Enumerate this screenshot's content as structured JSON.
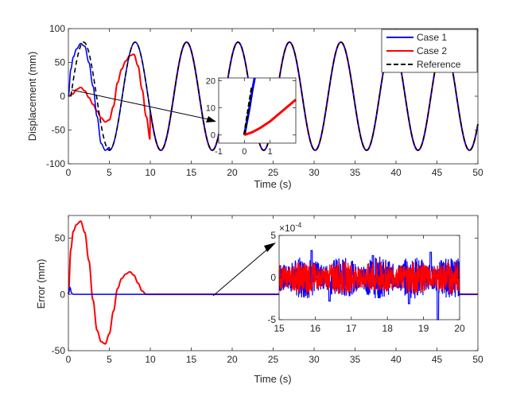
{
  "chart_data": [
    {
      "type": "line",
      "xlabel": "Time (s)",
      "ylabel": "Displacement (mm)",
      "xlim": [
        0,
        50
      ],
      "ylim": [
        -100,
        100
      ],
      "xticks": [
        0,
        5,
        10,
        15,
        20,
        25,
        30,
        35,
        40,
        45,
        50
      ],
      "yticks": [
        -100,
        -50,
        0,
        50,
        100
      ],
      "grid": false,
      "legend_position": "top-right",
      "reference_signal": {
        "amplitude": 80,
        "period": 6.28,
        "offset": 0,
        "x_start": 0.3,
        "x_end": 50
      },
      "series": [
        {
          "name": "Case 1",
          "color": "#0000ff",
          "dash": "solid",
          "x": [
            0,
            0.3,
            0.6,
            1.0,
            1.5,
            2.0,
            2.5,
            3.0,
            3.5,
            4.0,
            4.5,
            5.0
          ],
          "y": [
            0,
            40,
            58,
            70,
            78,
            74,
            50,
            15,
            -30,
            -70,
            -80,
            -76
          ]
        },
        {
          "name": "Case 2",
          "color": "#ff0000",
          "dash": "solid",
          "x": [
            0,
            0.5,
            1.0,
            1.5,
            2.0,
            2.5,
            3.0,
            3.5,
            4.0,
            4.5,
            5.0,
            5.5,
            6.0,
            6.5,
            7.0,
            7.5,
            8.0,
            8.5,
            9.0,
            9.5,
            10.0
          ],
          "y": [
            0,
            3,
            10,
            13,
            8,
            -2,
            -12,
            -22,
            -32,
            -38,
            -35,
            -15,
            20,
            40,
            52,
            60,
            62,
            45,
            10,
            -30,
            -65
          ]
        },
        {
          "name": "Reference",
          "color": "#000000",
          "dash": "dashed"
        }
      ],
      "inset": {
        "xlim": [
          -1,
          2
        ],
        "ylim": [
          -3,
          21
        ],
        "xticks": [
          -1,
          0,
          1
        ],
        "yticks": [
          0,
          10,
          20
        ],
        "series": [
          {
            "name": "Case 1",
            "color": "#0000ff",
            "x": [
              0,
              0.1,
              0.2,
              0.3,
              0.4
            ],
            "y": [
              0,
              5,
              10,
              16,
              21
            ]
          },
          {
            "name": "Reference",
            "color": "#000000",
            "x": [
              0,
              0.1,
              0.2,
              0.3
            ],
            "y": [
              0,
              6,
              12,
              18
            ]
          },
          {
            "name": "Case 2",
            "color": "#ff0000",
            "x": [
              0,
              0.3,
              0.6,
              1.0,
              1.5,
              2.0
            ],
            "y": [
              0,
              1,
              2.5,
              5,
              9,
              13
            ]
          }
        ]
      }
    },
    {
      "type": "line",
      "xlabel": "Time (s)",
      "ylabel": "Error (mm)",
      "xlim": [
        0,
        50
      ],
      "ylim": [
        -50,
        70
      ],
      "xticks": [
        0,
        5,
        10,
        15,
        20,
        25,
        30,
        35,
        40,
        45,
        50
      ],
      "yticks": [
        -50,
        0,
        50
      ],
      "grid": false,
      "series": [
        {
          "name": "Case 1",
          "color": "#0000ff",
          "x": [
            0,
            0.2,
            0.4,
            0.6,
            1.0,
            50
          ],
          "y": [
            0,
            6,
            1,
            0,
            0,
            0
          ]
        },
        {
          "name": "Case 2",
          "color": "#ff0000",
          "x": [
            0,
            0.3,
            0.6,
            1.0,
            1.5,
            2.0,
            2.5,
            3.0,
            3.5,
            4.0,
            4.5,
            5.0,
            5.5,
            6.0,
            6.5,
            7.0,
            7.5,
            8.0,
            8.5,
            9.0,
            9.5,
            10.0,
            50
          ],
          "y": [
            0,
            40,
            56,
            62,
            65,
            55,
            30,
            -5,
            -32,
            -42,
            -44,
            -35,
            -15,
            5,
            14,
            18,
            20,
            17,
            10,
            3,
            0,
            0,
            0
          ]
        }
      ],
      "inset": {
        "xlim": [
          15,
          20
        ],
        "ylim": [
          -5,
          5
        ],
        "xticks": [
          15,
          16,
          17,
          18,
          19,
          20
        ],
        "yticks": [
          -5,
          0,
          5
        ],
        "y_multiplier_label": "×10",
        "y_multiplier_exponent": "-4",
        "noise": [
          {
            "name": "Case 1",
            "color": "#0000ff",
            "amplitude": 2.5,
            "spikes": [
              {
                "x": 15.9,
                "y": 3.2
              },
              {
                "x": 16.4,
                "y": -2.8
              },
              {
                "x": 18.6,
                "y": -3.1
              },
              {
                "x": 19.4,
                "y": -5.0
              },
              {
                "x": 19.2,
                "y": 3.0
              },
              {
                "x": 17.6,
                "y": 2.6
              }
            ]
          },
          {
            "name": "Case 2",
            "color": "#ff0000",
            "amplitude": 2.0,
            "spikes": []
          }
        ]
      }
    }
  ]
}
